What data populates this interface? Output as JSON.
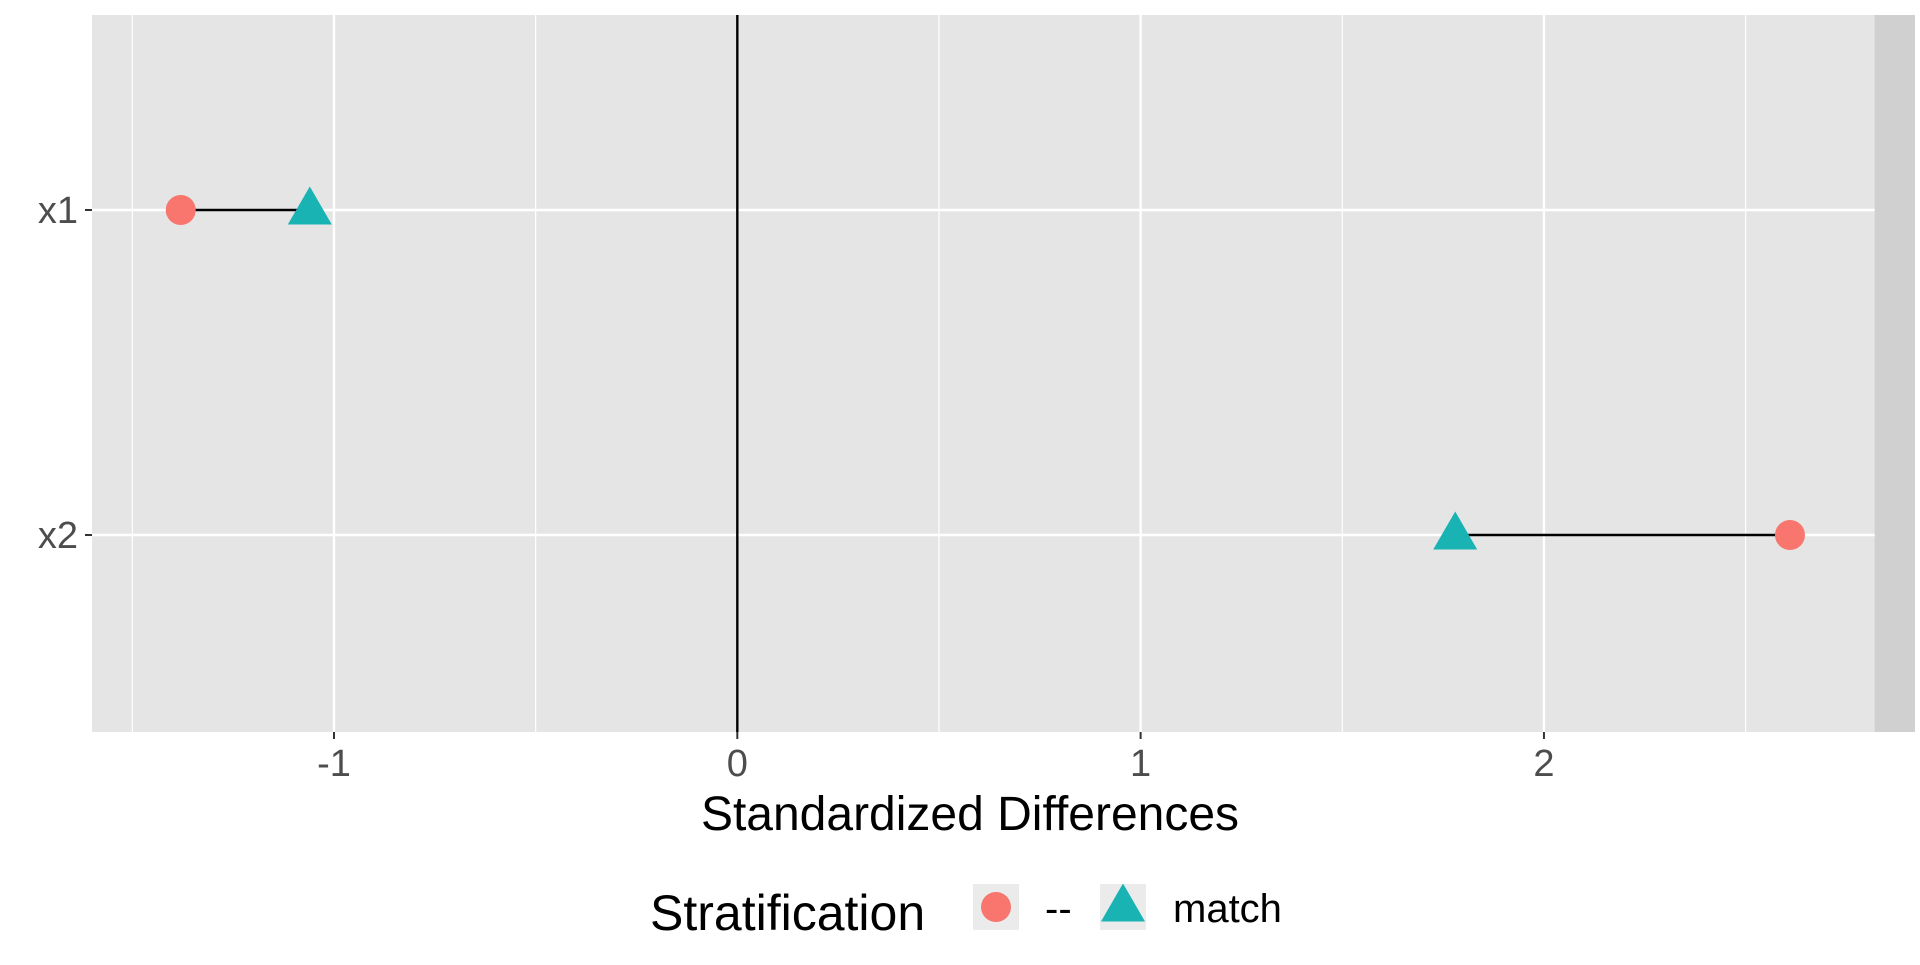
{
  "chart_data": {
    "type": "scatter",
    "xlabel": "Standardized Differences",
    "ylabel": "",
    "xlim": [
      -1.6,
      2.92
    ],
    "x_ticks": [
      -1,
      0,
      1,
      2
    ],
    "x_tick_labels": [
      "-1",
      "0",
      "1",
      "2"
    ],
    "x_minor_ticks": [
      -1.5,
      -0.5,
      0.5,
      1.5,
      2.5
    ],
    "categories": [
      "x1",
      "x2"
    ],
    "reference_line_x": 0,
    "grid": true,
    "shaded_band_beyond_x": 2.82,
    "series": [
      {
        "name": "--",
        "shape": "circle",
        "color": "#F8766D",
        "values": [
          -1.38,
          2.61
        ]
      },
      {
        "name": "match",
        "shape": "triangle",
        "color": "#00BFC4",
        "values": [
          -1.06,
          1.78
        ]
      }
    ],
    "legend": {
      "title": "Stratification",
      "placement": "bottom",
      "items": [
        "--",
        "match"
      ]
    },
    "colors": {
      "panel_background": "#E5E5E5",
      "shaded_band": "#D0D0D0",
      "grid": "#FFFFFF",
      "axis_text": "#4D4D4D",
      "triangle_fill": "#1AB3B3"
    }
  }
}
